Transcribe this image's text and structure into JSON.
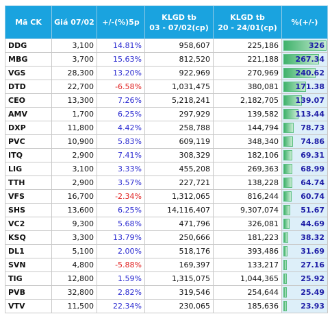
{
  "table": {
    "headers": [
      "Mã CK",
      "Giá 07/02",
      "+/-(%)5p",
      "KLGD tb\n03 - 07/02(cp)",
      "KLGD tb\n20 - 24/01(cp)",
      "%(+/-)"
    ],
    "rows": [
      [
        "DDG",
        "3,100",
        "14.81%",
        "958,607",
        "225,186",
        326
      ],
      [
        "MBG",
        "3,700",
        "15.63%",
        "812,520",
        "221,188",
        267.34
      ],
      [
        "VGS",
        "28,300",
        "13.20%",
        "922,969",
        "270,969",
        240.62
      ],
      [
        "DTD",
        "22,700",
        "-6.58%",
        "1,031,475",
        "380,081",
        171.38
      ],
      [
        "CEO",
        "13,300",
        "7.26%",
        "5,218,241",
        "2,182,705",
        139.07
      ],
      [
        "AMV",
        "1,700",
        "6.25%",
        "297,929",
        "139,582",
        113.44
      ],
      [
        "DXP",
        "11,800",
        "4.42%",
        "258,788",
        "144,794",
        78.73
      ],
      [
        "PVC",
        "10,900",
        "5.83%",
        "609,119",
        "348,340",
        74.86
      ],
      [
        "ITQ",
        "2,900",
        "7.41%",
        "308,329",
        "182,106",
        69.31
      ],
      [
        "LIG",
        "3,100",
        "3.33%",
        "455,208",
        "269,363",
        68.99
      ],
      [
        "TTH",
        "2,900",
        "3.57%",
        "227,721",
        "138,228",
        64.74
      ],
      [
        "VFS",
        "16,700",
        "-2.34%",
        "1,312,065",
        "816,244",
        60.74
      ],
      [
        "SHS",
        "13,600",
        "6.25%",
        "14,116,407",
        "9,307,074",
        51.67
      ],
      [
        "VC2",
        "9,300",
        "5.68%",
        "471,796",
        "326,081",
        44.69
      ],
      [
        "KSQ",
        "3,300",
        "13.79%",
        "250,666",
        "181,223",
        38.32
      ],
      [
        "DL1",
        "5,100",
        "2.00%",
        "518,176",
        "393,486",
        31.69
      ],
      [
        "SVN",
        "4,800",
        "-5.88%",
        "169,397",
        "133,217",
        27.16
      ],
      [
        "TIG",
        "12,800",
        "1.59%",
        "1,315,075",
        "1,044,365",
        25.92
      ],
      [
        "PVB",
        "32,800",
        "2.82%",
        "319,546",
        "254,644",
        25.49
      ],
      [
        "VTV",
        "11,500",
        "22.34%",
        "230,065",
        "185,636",
        23.93
      ]
    ]
  }
}
